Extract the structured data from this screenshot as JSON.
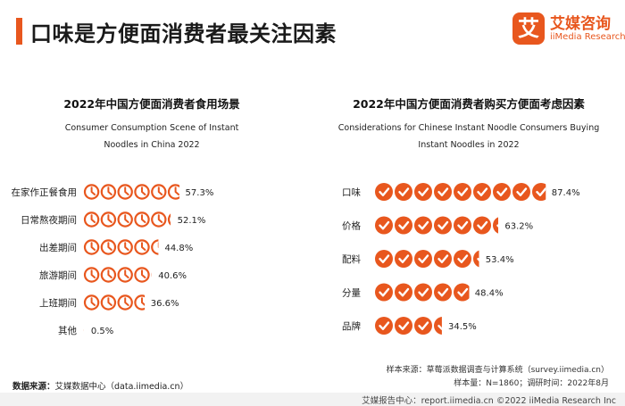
{
  "page_title": "口味是方便面消费者最关注因素",
  "logo": {
    "mark": "艾",
    "cn": "艾媒咨询",
    "en": "iiMedia Research"
  },
  "chart_data": [
    {
      "type": "bar",
      "title": "2022年中国方便面消费者食用场景",
      "subtitle_line1": "Consumer Consumption Scene of Instant",
      "subtitle_line2": "Noodles in China 2022",
      "icon": "clock-icon",
      "color": "#e8571e",
      "categories": [
        "在家作正餐食用",
        "日常熬夜期间",
        "出差期间",
        "旅游期间",
        "上班期间",
        "其他"
      ],
      "values": [
        57.3,
        52.1,
        44.8,
        40.6,
        36.6,
        0.5
      ],
      "value_labels": [
        "57.3%",
        "52.1%",
        "44.8%",
        "40.6%",
        "36.6%",
        "0.5%"
      ],
      "xlim": [
        0,
        100
      ]
    },
    {
      "type": "bar",
      "title": "2022年中国方便面消费者购买方便面考虑因素",
      "subtitle_line1": "Considerations for Chinese Instant Noodle Consumers Buying",
      "subtitle_line2": "Instant Noodles in 2022",
      "icon": "check-icon",
      "color": "#e8571e",
      "categories": [
        "口味",
        "价格",
        "配料",
        "分量",
        "品牌"
      ],
      "values": [
        87.4,
        63.2,
        53.4,
        48.4,
        34.5
      ],
      "value_labels": [
        "87.4%",
        "63.2%",
        "53.4%",
        "48.4%",
        "34.5%"
      ],
      "xlim": [
        0,
        100
      ]
    }
  ],
  "footer": {
    "source_label": "数据来源：",
    "source_text": "艾媒数据中心（data.iimedia.cn）",
    "sample_source": "样本来源：草莓派数据调查与计算系统（survey.iimedia.cn）",
    "sample_info": "样本量：N=1860；调研时间：2022年8月",
    "bottom": "艾媒报告中心：report.iimedia.cn  ©2022  iiMedia Research  Inc"
  }
}
